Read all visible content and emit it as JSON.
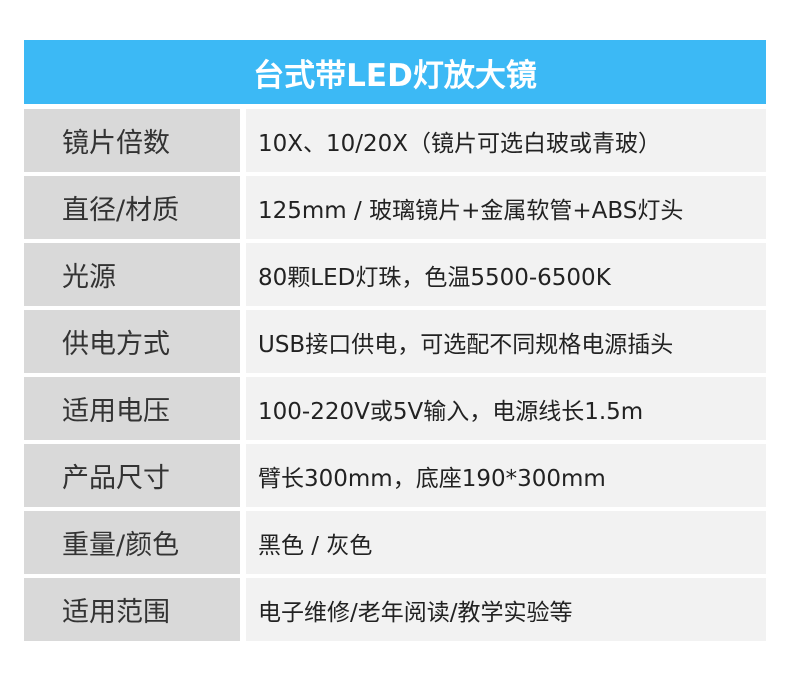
{
  "header": {
    "title": "台式带LED灯放大镜"
  },
  "table": {
    "rows": [
      [
        "镜片倍数",
        "10X、10/20X（镜片可选白玻或青玻）"
      ],
      [
        "直径/材质",
        "125mm / 玻璃镜片+金属软管+ABS灯头"
      ],
      [
        "光源",
        "80颗LED灯珠，色温5500-6500K"
      ],
      [
        "供电方式",
        "USB接口供电，可选配不同规格电源插头"
      ],
      [
        "适用电压",
        "100-220V或5V输入，电源线长1.5m"
      ],
      [
        "产品尺寸",
        "臂长300mm，底座190*300mm"
      ],
      [
        "重量/颜色",
        "黑色 / 灰色"
      ],
      [
        "适用范围",
        "电子维修/老年阅读/教学实验等"
      ]
    ]
  }
}
